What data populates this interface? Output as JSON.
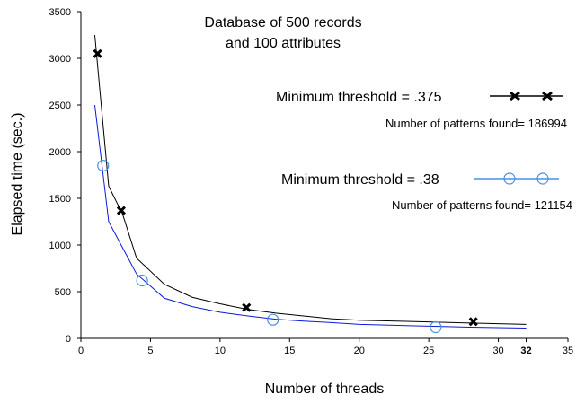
{
  "chart_data": {
    "type": "line",
    "title": [
      "Database of 500 records",
      "and 100 attributes"
    ],
    "xlabel": "Number of threads",
    "ylabel": "Elapsed time (sec.)",
    "xlim": [
      0,
      35
    ],
    "ylim": [
      0,
      3500
    ],
    "x_ticks": [
      "0",
      "5",
      "10",
      "15",
      "20",
      "25",
      "30",
      "32",
      "35"
    ],
    "x_tick_values": [
      0,
      5,
      10,
      15,
      20,
      25,
      30,
      32,
      35
    ],
    "y_ticks": [
      "0",
      "500",
      "1000",
      "1500",
      "2000",
      "2500",
      "3000",
      "3500"
    ],
    "y_tick_values": [
      0,
      500,
      1000,
      1500,
      2000,
      2500,
      3000,
      3500
    ],
    "grid": false,
    "legend_position": "right",
    "series": [
      {
        "name": "Minimum threshold = .375",
        "note": "Number of patterns found= 186994",
        "color": "#000000",
        "marker": "x",
        "x": [
          1,
          2,
          3,
          4,
          6,
          8,
          10,
          12,
          14,
          16,
          18,
          20,
          24,
          28,
          32
        ],
        "y": [
          3250,
          1630,
          1330,
          860,
          580,
          440,
          370,
          310,
          270,
          240,
          210,
          195,
          180,
          165,
          150
        ],
        "marker_x": [
          1.2,
          2.9,
          11.9,
          28.2
        ],
        "marker_y": [
          3050,
          1370,
          330,
          180
        ]
      },
      {
        "name": "Minimum threshold = .38",
        "note": "Number of patterns found= 121154",
        "color": "#0a1ad6",
        "legend_color": "#4a90e2",
        "marker": "o",
        "x": [
          1,
          2,
          3,
          4,
          6,
          8,
          10,
          12,
          14,
          16,
          18,
          20,
          24,
          28,
          32
        ],
        "y": [
          2500,
          1250,
          970,
          690,
          430,
          340,
          280,
          240,
          205,
          185,
          170,
          150,
          135,
          120,
          110
        ],
        "marker_x": [
          1.6,
          4.4,
          13.8,
          25.5
        ],
        "marker_y": [
          1850,
          620,
          200,
          120
        ]
      }
    ]
  }
}
